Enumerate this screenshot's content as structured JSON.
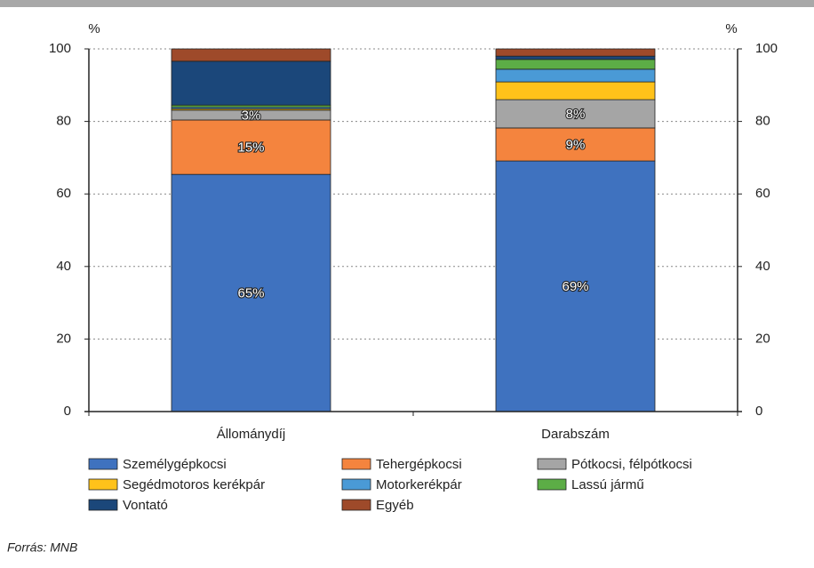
{
  "chart_data": {
    "type": "stacked_bar",
    "categories": [
      "Állománydíj",
      "Darabszám"
    ],
    "series": [
      {
        "name": "Személygépkocsi",
        "color": "#3f72bf",
        "values": [
          65.4,
          69.1
        ],
        "value_labels": [
          "65%",
          "69%"
        ]
      },
      {
        "name": "Tehergépkocsi",
        "color": "#f4843e",
        "values": [
          15.0,
          9.1
        ],
        "value_labels": [
          "15%",
          "9%"
        ]
      },
      {
        "name": "Pótkocsi, félpótkocsi",
        "color": "#a5a5a5",
        "values": [
          2.7,
          7.8
        ],
        "value_labels": [
          "3%",
          "8%"
        ]
      },
      {
        "name": "Segédmotoros kerékpár",
        "color": "#ffc21a",
        "values": [
          0.4,
          4.9
        ]
      },
      {
        "name": "Motorkerékpár",
        "color": "#4a9ad6",
        "values": [
          0.4,
          3.5
        ]
      },
      {
        "name": "Lassú jármű",
        "color": "#5cad46",
        "values": [
          0.6,
          2.7
        ]
      },
      {
        "name": "Vontató",
        "color": "#1b477a",
        "values": [
          12.1,
          0.9
        ]
      },
      {
        "name": "Egyéb",
        "color": "#9e4a2a",
        "values": [
          3.4,
          2.0
        ]
      }
    ],
    "ylabel": "%",
    "y2label": "%",
    "ylim": [
      0,
      100
    ],
    "yticks": [
      0,
      20,
      40,
      60,
      80,
      100
    ],
    "y2lim": [
      0,
      100
    ],
    "y2ticks": [
      0,
      20,
      40,
      60,
      80,
      100
    ],
    "grid": true,
    "source": "Forrás: MNB"
  }
}
